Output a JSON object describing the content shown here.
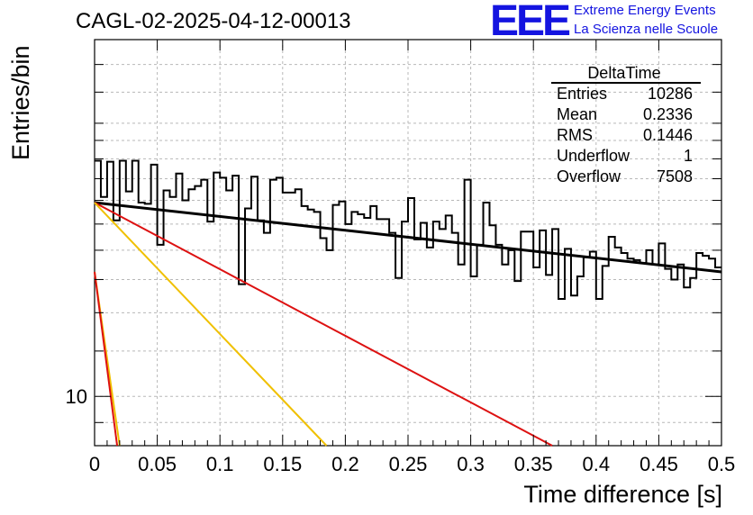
{
  "header": {
    "title": "CAGL-02-2025-04-12-00013",
    "logo_text": "EEE",
    "logo_line1": "Extreme Energy Events",
    "logo_line2": "La Scienza nelle Scuole",
    "logo_color": "#1414e0"
  },
  "stats_box": {
    "title": "DeltaTime",
    "rows": [
      {
        "label": "Entries",
        "value": "10286"
      },
      {
        "label": "Mean",
        "value": "0.2336"
      },
      {
        "label": "RMS",
        "value": "0.1446"
      },
      {
        "label": "Underflow",
        "value": "1"
      },
      {
        "label": "Overflow",
        "value": "7508"
      }
    ]
  },
  "chart_data": {
    "type": "line",
    "title": "CAGL-02-2025-04-12-00013",
    "xlabel": "Time difference [s]",
    "ylabel": "Entries/bin",
    "x_range": [
      0,
      0.5
    ],
    "y_range": [
      8.2,
      42
    ],
    "y_scale": "log",
    "y_tick_labels": [
      {
        "value": 10,
        "label": "10"
      }
    ],
    "x_tick_labels": [
      "0",
      "0.05",
      "0.1",
      "0.15",
      "0.2",
      "0.25",
      "0.3",
      "0.35",
      "0.4",
      "0.45",
      "0.5"
    ],
    "x_ticks": [
      0,
      0.05,
      0.1,
      0.15,
      0.2,
      0.25,
      0.3,
      0.35,
      0.4,
      0.45,
      0.5
    ],
    "y_grid": [
      9,
      10,
      12,
      14,
      16,
      18,
      20,
      22,
      24,
      26,
      28,
      30,
      34,
      38
    ],
    "grid": true,
    "bin_width": 0.005,
    "histogram": [
      25.8,
      22.3,
      25.7,
      20.3,
      25.8,
      22.8,
      25.8,
      21.8,
      21.7,
      25.4,
      18.4,
      22.9,
      22.3,
      24.5,
      22.0,
      23.0,
      23.3,
      23.9,
      20.2,
      24.6,
      24.1,
      22.9,
      24.3,
      15.7,
      21.3,
      24.2,
      20.3,
      19.3,
      23.9,
      24.1,
      22.7,
      22.7,
      23.0,
      21.5,
      21.2,
      21.0,
      18.9,
      18.0,
      21.6,
      21.9,
      20.0,
      21.0,
      20.8,
      20.5,
      21.5,
      20.4,
      20.4,
      19.3,
      16.1,
      20.2,
      22.2,
      18.8,
      20.1,
      18.2,
      20.2,
      19.6,
      20.7,
      19.3,
      17.0,
      23.9,
      16.2,
      18.4,
      21.8,
      19.9,
      18.4,
      17.0,
      18.0,
      15.9,
      19.4,
      19.4,
      16.8,
      19.5,
      16.3,
      19.6,
      14.8,
      18.1,
      15.0,
      16.2,
      17.5,
      17.9,
      14.8,
      16.9,
      19.0,
      18.2,
      17.8,
      17.4,
      17.3,
      17.1,
      18.0,
      17.0,
      18.5,
      16.7,
      16.0,
      17.0,
      15.5,
      16.1,
      17.8,
      17.6,
      17.4,
      16.8
    ],
    "series": [
      {
        "color": "#000000",
        "points": [
          [
            0,
            21.8
          ],
          [
            0.5,
            16.5
          ]
        ]
      },
      {
        "color": "#dd1111",
        "points": [
          [
            0,
            21.8
          ],
          [
            0.365,
            8.2
          ]
        ]
      },
      {
        "color": "#f0c000",
        "points": [
          [
            0,
            21.8
          ],
          [
            0.185,
            8.2
          ]
        ]
      },
      {
        "color": "#f0c000",
        "points": [
          [
            0,
            16.5
          ],
          [
            0.02,
            8.2
          ]
        ]
      },
      {
        "color": "#dd1111",
        "points": [
          [
            0,
            16.5
          ],
          [
            0.018,
            8.2
          ]
        ]
      }
    ]
  }
}
